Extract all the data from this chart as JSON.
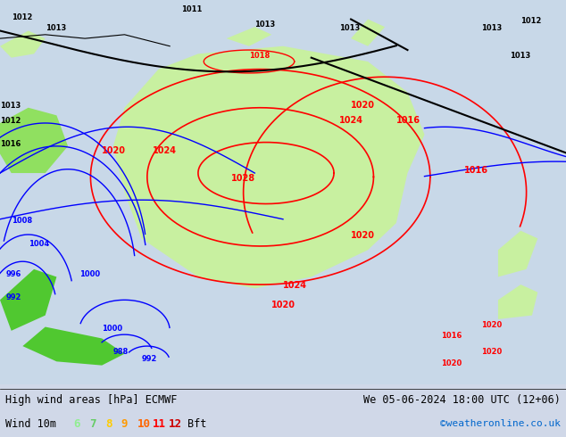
{
  "title_left": "High wind areas [hPa] ECMWF",
  "title_right": "We 05-06-2024 18:00 UTC (12+06)",
  "subtitle_left": "Wind 10m",
  "bft_labels": [
    "6",
    "7",
    "8",
    "9",
    "10",
    "11",
    "12"
  ],
  "bft_colors": [
    "#90ee90",
    "#66cc66",
    "#ffcc00",
    "#ff9900",
    "#ff6600",
    "#ff0000",
    "#cc0000"
  ],
  "bft_suffix": "Bft",
  "copyright": "©weatheronline.co.uk",
  "copyright_color": "#0066cc",
  "bg_color": "#d0d8e8",
  "label_color": "#000000",
  "fig_width": 6.34,
  "fig_height": 4.9,
  "dpi": 100
}
